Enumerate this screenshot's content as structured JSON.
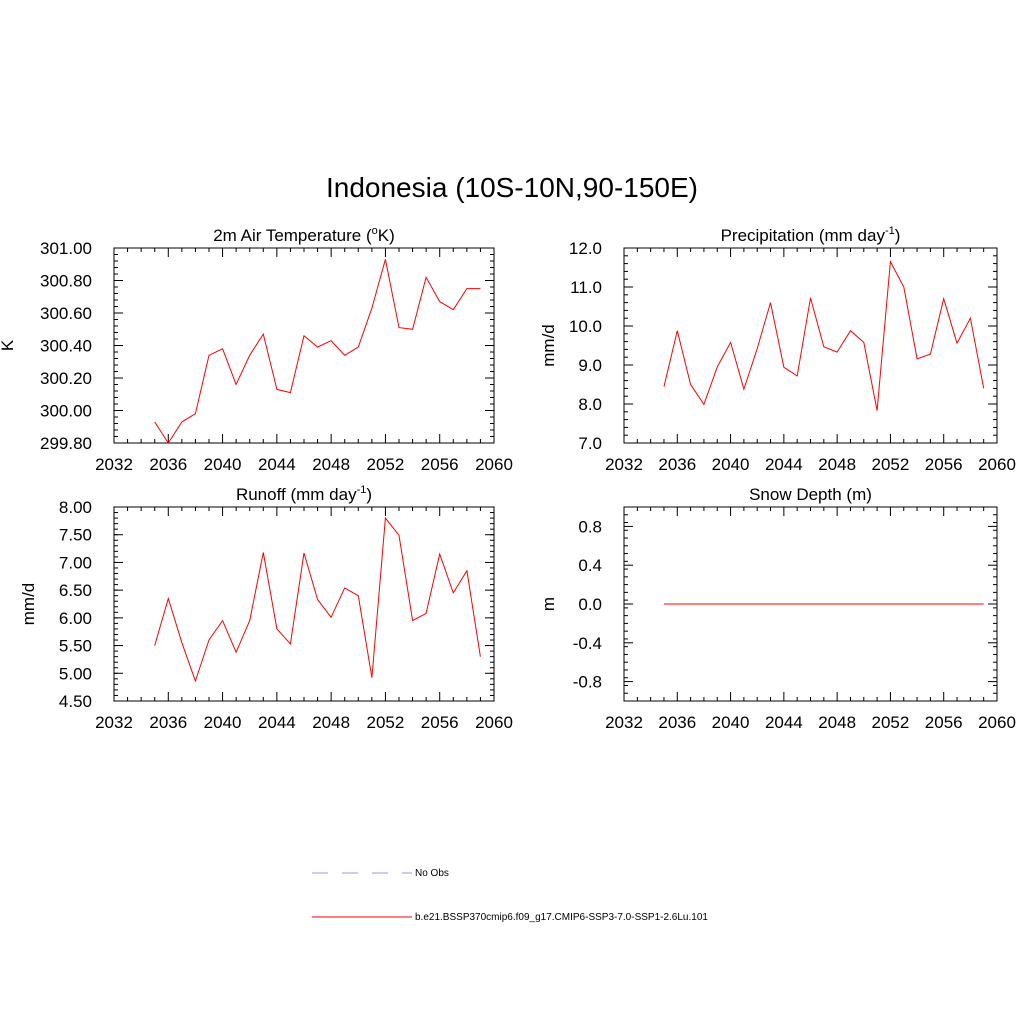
{
  "title": "Indonesia (10S-10N,90-150E)",
  "colors": {
    "series": "#ff0000",
    "no_obs": "#9999dd",
    "axis": "#000000"
  },
  "legend": {
    "items": [
      {
        "label": "No Obs",
        "style": "dashed",
        "color": "#9999dd"
      },
      {
        "label": "b.e21.BSSP370cmip6.f09_g17.CMIP6-SSP3-7.0-SSP1-2.6Lu.101",
        "style": "solid",
        "color": "#ff0000"
      }
    ]
  },
  "chart_data": [
    {
      "type": "line",
      "title": "2m Air Temperature (",
      "title_sup": "o",
      "title_post": "K)",
      "ylabel": "K",
      "xlim": [
        2032,
        2060
      ],
      "xticks": [
        "2032",
        "2036",
        "2040",
        "2044",
        "2048",
        "2052",
        "2056",
        "2060"
      ],
      "ylim": [
        299.8,
        301.0
      ],
      "yticks": [
        "299.80",
        "300.00",
        "300.20",
        "300.40",
        "300.60",
        "300.80",
        "301.00"
      ],
      "x": [
        2035,
        2036,
        2037,
        2038,
        2039,
        2040,
        2041,
        2042,
        2043,
        2044,
        2045,
        2046,
        2047,
        2048,
        2049,
        2050,
        2051,
        2052,
        2053,
        2054,
        2055,
        2056,
        2057,
        2058,
        2059
      ],
      "values": [
        299.93,
        299.8,
        299.93,
        299.98,
        300.34,
        300.38,
        300.16,
        300.34,
        300.47,
        300.13,
        300.11,
        300.46,
        300.39,
        300.43,
        300.34,
        300.39,
        300.63,
        300.93,
        300.51,
        300.5,
        300.82,
        300.67,
        300.62,
        300.75,
        300.75
      ]
    },
    {
      "type": "line",
      "title": "Precipitation (mm day",
      "title_sup": "-1",
      "title_post": ")",
      "ylabel": "mm/d",
      "xlim": [
        2032,
        2060
      ],
      "xticks": [
        "2032",
        "2036",
        "2040",
        "2044",
        "2048",
        "2052",
        "2056",
        "2060"
      ],
      "ylim": [
        7.0,
        12.0
      ],
      "yticks": [
        "7.0",
        "8.0",
        "9.0",
        "10.0",
        "11.0",
        "12.0"
      ],
      "x": [
        2035,
        2036,
        2037,
        2038,
        2039,
        2040,
        2041,
        2042,
        2043,
        2044,
        2045,
        2046,
        2047,
        2048,
        2049,
        2050,
        2051,
        2052,
        2053,
        2054,
        2055,
        2056,
        2057,
        2058,
        2059
      ],
      "values": [
        8.45,
        9.88,
        8.5,
        7.99,
        8.95,
        9.58,
        8.38,
        9.42,
        10.6,
        8.94,
        8.72,
        10.72,
        9.47,
        9.33,
        9.88,
        9.58,
        7.83,
        11.65,
        11.0,
        9.16,
        9.28,
        10.7,
        9.56,
        10.2,
        8.4
      ]
    },
    {
      "type": "line",
      "title": "Runoff (mm day",
      "title_sup": "-1",
      "title_post": ")",
      "ylabel": "mm/d",
      "xlim": [
        2032,
        2060
      ],
      "xticks": [
        "2032",
        "2036",
        "2040",
        "2044",
        "2048",
        "2052",
        "2056",
        "2060"
      ],
      "ylim": [
        4.5,
        8.0
      ],
      "yticks": [
        "4.50",
        "5.00",
        "5.50",
        "6.00",
        "6.50",
        "7.00",
        "7.50",
        "8.00"
      ],
      "x": [
        2035,
        2036,
        2037,
        2038,
        2039,
        2040,
        2041,
        2042,
        2043,
        2044,
        2045,
        2046,
        2047,
        2048,
        2049,
        2050,
        2051,
        2052,
        2053,
        2054,
        2055,
        2056,
        2057,
        2058,
        2059
      ],
      "values": [
        5.5,
        6.35,
        5.55,
        4.86,
        5.6,
        5.95,
        5.38,
        5.95,
        7.18,
        5.8,
        5.53,
        7.17,
        6.33,
        6.01,
        6.54,
        6.4,
        4.92,
        7.8,
        7.49,
        5.95,
        6.08,
        7.15,
        6.45,
        6.85,
        5.3
      ]
    },
    {
      "type": "line",
      "title": "Snow Depth (m)",
      "title_sup": "",
      "title_post": "",
      "ylabel": "m",
      "xlim": [
        2032,
        2060
      ],
      "xticks": [
        "2032",
        "2036",
        "2040",
        "2044",
        "2048",
        "2052",
        "2056",
        "2060"
      ],
      "ylim": [
        -1.0,
        1.0
      ],
      "yticks": [
        "-0.8",
        "-0.4",
        "0.0",
        "0.4",
        "0.8"
      ],
      "ytick_values": [
        -0.8,
        -0.4,
        0.0,
        0.4,
        0.8
      ],
      "x": [
        2035,
        2059
      ],
      "values": [
        0.0,
        0.0
      ]
    }
  ]
}
